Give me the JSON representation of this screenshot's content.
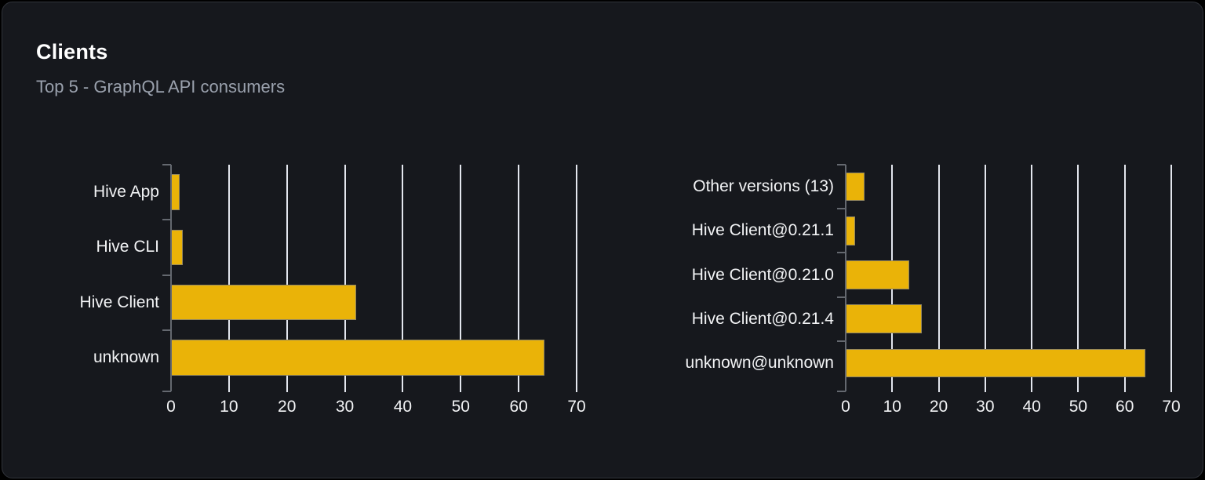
{
  "panel": {
    "title": "Clients",
    "subtitle": "Top 5 - GraphQL API consumers"
  },
  "colors": {
    "bar_fill": "#eab308",
    "panel_bg": "#16181d",
    "panel_border": "#31343b",
    "outer_bg": "#000000",
    "grid": "#e3e6ee",
    "axis": "#64686f",
    "title_text": "#ffffff",
    "subtitle_text": "#9aa1ad",
    "label_text": "#f2f3f5"
  },
  "chart_data": [
    {
      "type": "bar",
      "orientation": "horizontal",
      "title": "",
      "xlabel": "",
      "ylabel": "",
      "categories": [
        "Hive App",
        "Hive CLI",
        "Hive Client",
        "unknown"
      ],
      "values": [
        1.5,
        2,
        32,
        64.5
      ],
      "xlim": [
        0,
        70
      ],
      "xticks": [
        0,
        10,
        20,
        30,
        40,
        50,
        60,
        70
      ],
      "grid": true,
      "legend": false
    },
    {
      "type": "bar",
      "orientation": "horizontal",
      "title": "",
      "xlabel": "",
      "ylabel": "",
      "categories": [
        "Other versions (13)",
        "Hive Client@0.21.1",
        "Hive Client@0.21.0",
        "Hive Client@0.21.4",
        "unknown@unknown"
      ],
      "values": [
        4,
        2,
        13.7,
        16.4,
        64.5
      ],
      "xlim": [
        0,
        70
      ],
      "xticks": [
        0,
        10,
        20,
        30,
        40,
        50,
        60,
        70
      ],
      "grid": true,
      "legend": false
    }
  ]
}
